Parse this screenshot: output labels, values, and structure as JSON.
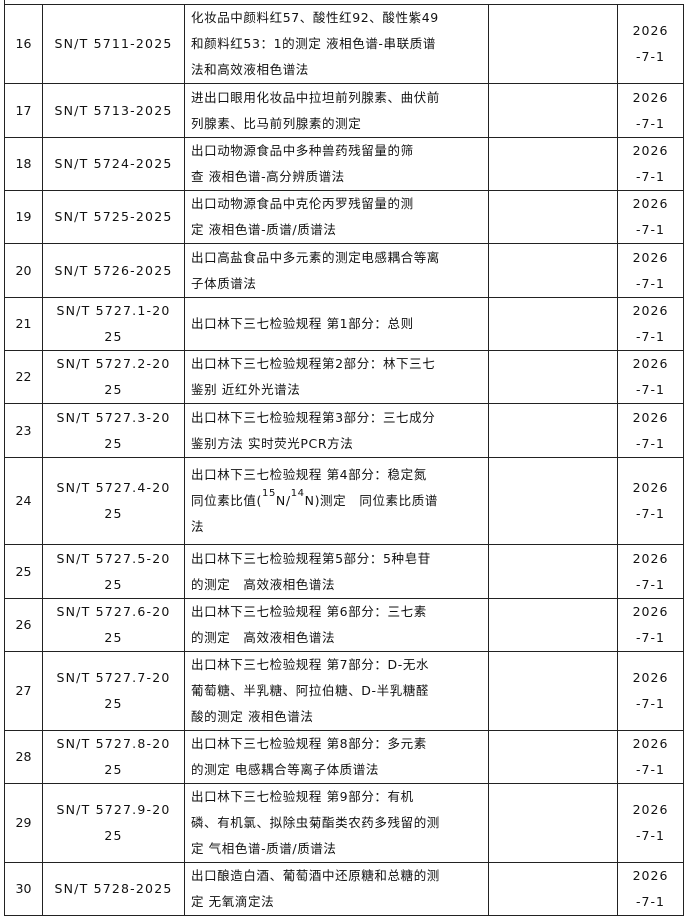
{
  "rows": [
    {
      "no": "16",
      "code": "SN/T 5711-2025",
      "title": "化妆品中颜料红57、酸性红92、酸性紫49\n和颜料红53：1的测定 液相色谱-串联质谱\n法和高效液相色谱法",
      "extra": "",
      "date": "2026\n-7-1"
    },
    {
      "no": "17",
      "code": "SN/T 5713-2025",
      "title": "进出口眼用化妆品中拉坦前列腺素、曲伏前\n列腺素、比马前列腺素的测定",
      "extra": "",
      "date": "2026\n-7-1"
    },
    {
      "no": "18",
      "code": "SN/T 5724-2025",
      "title": "出口动物源食品中多种兽药残留量的筛\n查 液相色谱-高分辨质谱法",
      "extra": "",
      "date": "2026\n-7-1"
    },
    {
      "no": "19",
      "code": "SN/T 5725-2025",
      "title": "出口动物源食品中克伦丙罗残留量的测\n定 液相色谱-质谱/质谱法",
      "extra": "",
      "date": "2026\n-7-1"
    },
    {
      "no": "20",
      "code": "SN/T 5726-2025",
      "title": "出口高盐食品中多元素的测定电感耦合等离\n子体质谱法",
      "extra": "",
      "date": "2026\n-7-1"
    },
    {
      "no": "21",
      "code": "SN/T 5727.1-20\n25",
      "title": "出口林下三七检验规程 第1部分：总则",
      "extra": "",
      "date": "2026\n-7-1"
    },
    {
      "no": "22",
      "code": "SN/T 5727.2-20\n25",
      "title": "出口林下三七检验规程第2部分：林下三七\n鉴别 近红外光谱法",
      "extra": "",
      "date": "2026\n-7-1"
    },
    {
      "no": "23",
      "code": "SN/T 5727.3-20\n25",
      "title": "出口林下三七检验规程第3部分：三七成分\n鉴别方法 实时荧光PCR方法",
      "extra": "",
      "date": "2026\n-7-1"
    },
    {
      "no": "24",
      "code": "SN/T 5727.4-20\n25",
      "title_parts": [
        {
          "t": "出口林下三七检验规程 第4部分：稳定氮\n同位素比值("
        },
        {
          "sup": "15"
        },
        {
          "t": "N/"
        },
        {
          "sup": "14"
        },
        {
          "t": "N)测定　同位素比质谱\n法"
        }
      ],
      "extra": "",
      "date": "2026\n-7-1"
    },
    {
      "no": "25",
      "code": "SN/T 5727.5-20\n25",
      "title": "出口林下三七检验规程第5部分：5种皂苷\n的测定　高效液相色谱法",
      "extra": "",
      "date": "2026\n-7-1"
    },
    {
      "no": "26",
      "code": "SN/T 5727.6-20\n25",
      "title": "出口林下三七检验规程 第6部分：三七素\n的测定　高效液相色谱法",
      "extra": "",
      "date": "2026\n-7-1"
    },
    {
      "no": "27",
      "code": "SN/T 5727.7-20\n25",
      "title": "出口林下三七检验规程 第7部分：D-无水\n葡萄糖、半乳糖、阿拉伯糖、D-半乳糖醛\n酸的测定 液相色谱法",
      "extra": "",
      "date": "2026\n-7-1"
    },
    {
      "no": "28",
      "code": "SN/T 5727.8-20\n25",
      "title": "出口林下三七检验规程 第8部分：多元素\n的测定 电感耦合等离子体质谱法",
      "extra": "",
      "date": "2026\n-7-1"
    },
    {
      "no": "29",
      "code": "SN/T 5727.9-20\n25",
      "title": "出口林下三七检验规程 第9部分：有机\n磷、有机氯、拟除虫菊酯类农药多残留的测\n定 气相色谱-质谱/质谱法",
      "extra": "",
      "date": "2026\n-7-1"
    },
    {
      "no": "30",
      "code": "SN/T 5728-2025",
      "title": "出口酿造白酒、葡萄酒中还原糖和总糖的测\n定 无氧滴定法",
      "extra": "",
      "date": "2026\n-7-1"
    }
  ]
}
